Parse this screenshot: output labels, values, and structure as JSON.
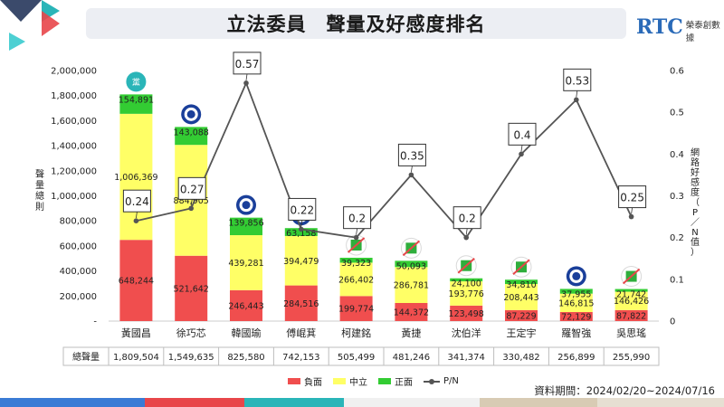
{
  "header": {
    "title": "立法委員　聲量及好感度排名",
    "brand_letters": "RTC",
    "brand_name": "榮泰創數據"
  },
  "footer": {
    "period": "資料期間：2024/02/20~2024/07/16"
  },
  "colors": {
    "negative": "#f04e4e",
    "neutral": "#ffff66",
    "positive": "#33cc33",
    "line": "#555555",
    "accent_red": "#e8464a",
    "accent_teal": "#2ab5b8",
    "accent_navy": "#3b4a6b"
  },
  "chart_data": {
    "type": "bar",
    "stacked": true,
    "categories": [
      "黃國昌",
      "徐巧芯",
      "韓國瑜",
      "傅崐萁",
      "柯建銘",
      "黃捷",
      "沈伯洋",
      "王定宇",
      "羅智強",
      "吳思瑤"
    ],
    "series": [
      {
        "name": "負面",
        "values": [
          648244,
          521642,
          246443,
          284516,
          199774,
          144372,
          123498,
          87229,
          72129,
          87822
        ],
        "labels": [
          "648,244",
          "521,642",
          "246,443",
          "284,516",
          "199,774",
          "144,372",
          "123,498",
          "87,229",
          "72,129",
          "87,822"
        ]
      },
      {
        "name": "中立",
        "values": [
          1006369,
          884905,
          439281,
          394479,
          266402,
          286781,
          193776,
          208443,
          146815,
          146426
        ],
        "labels": [
          "1,006,369",
          "884,905",
          "439,281",
          "394,479",
          "266,402",
          "286,781",
          "193,776",
          "208,443",
          "146,815",
          "146,426"
        ]
      },
      {
        "name": "正面",
        "values": [
          154891,
          143088,
          139856,
          63158,
          39323,
          50093,
          24100,
          34810,
          37955,
          21742
        ],
        "labels": [
          "154,891",
          "143,088",
          "139,856",
          "63,158",
          "39,323",
          "50,093",
          "24,100",
          "34,810",
          "37,955",
          "21,742"
        ]
      }
    ],
    "line": {
      "name": "P/N",
      "values": [
        0.24,
        0.27,
        0.57,
        0.22,
        0.2,
        0.35,
        0.2,
        0.4,
        0.53,
        0.25
      ],
      "labels": [
        "0.24",
        "0.27",
        "0.57",
        "0.22",
        "0.2",
        "0.35",
        "0.2",
        "0.4",
        "0.53",
        "0.25"
      ]
    },
    "party": [
      "黨",
      "kmt",
      "kmt",
      "kmt",
      "dpp",
      "dpp",
      "dpp",
      "dpp",
      "kmt",
      "dpp"
    ],
    "totals_label": "總聲量",
    "totals": [
      "1,809,504",
      "1,549,635",
      "825,580",
      "742,153",
      "505,499",
      "481,246",
      "341,374",
      "330,482",
      "256,899",
      "255,990"
    ],
    "y_left_label": "聲量總則",
    "y_left_ticks": [
      "-",
      "200,000",
      "400,000",
      "600,000",
      "800,000",
      "1,000,000",
      "1,200,000",
      "1,400,000",
      "1,600,000",
      "1,800,000",
      "2,000,000"
    ],
    "ylim_left": [
      0,
      2000000
    ],
    "y_right_label": "網路好感度（P／N值）",
    "y_right_ticks": [
      "0",
      "0.1",
      "0.2",
      "0.3",
      "0.4",
      "0.5",
      "0.6"
    ],
    "ylim_right": [
      0,
      0.6
    ],
    "legend": [
      "負面",
      "中立",
      "正面",
      "P/N"
    ],
    "legend_position": "bottom"
  }
}
